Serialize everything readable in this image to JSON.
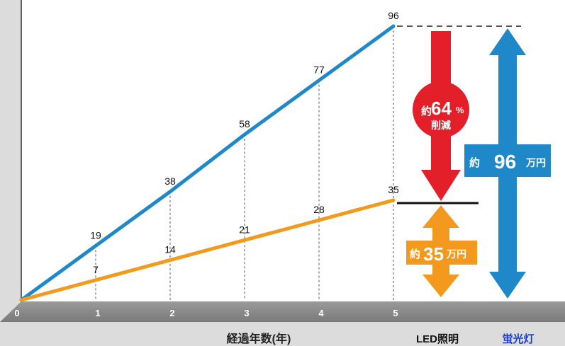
{
  "chart_data": {
    "type": "line",
    "x": [
      0,
      1,
      2,
      3,
      4,
      5
    ],
    "xlabel": "経過年数(年)",
    "xlim": [
      0,
      5
    ],
    "ylim": [
      0,
      100
    ],
    "grid": "vertical dashed drop lines",
    "series": [
      {
        "name": "蛍光灯",
        "color": "#1e88c8",
        "values": [
          0,
          19,
          38,
          58,
          77,
          96
        ]
      },
      {
        "name": "LED照明",
        "color": "#f39a1e",
        "values": [
          0,
          7,
          14,
          21,
          28,
          35
        ]
      }
    ],
    "data_labels": {
      "fluorescent": [
        "19",
        "38",
        "58",
        "77",
        "96"
      ],
      "led": [
        "7",
        "14",
        "21",
        "28",
        "35"
      ]
    },
    "x_tick_labels": [
      "0",
      "1",
      "2",
      "3",
      "4",
      "5"
    ]
  },
  "annotations": {
    "reduction": {
      "prefix": "約",
      "value": "64",
      "unit": "%",
      "sub": "削減",
      "color": "#e3202a"
    },
    "fluorescent_total": {
      "prefix": "約",
      "value": "96",
      "unit": "万円",
      "color": "#1e88c8"
    },
    "led_total": {
      "prefix": "約",
      "value": "35",
      "unit": "万円",
      "color": "#f39a1e"
    }
  },
  "legend": {
    "led": {
      "label": "LED照明",
      "color": "#111111"
    },
    "fluorescent": {
      "label": "蛍光灯",
      "color": "#1a3fd0"
    }
  }
}
